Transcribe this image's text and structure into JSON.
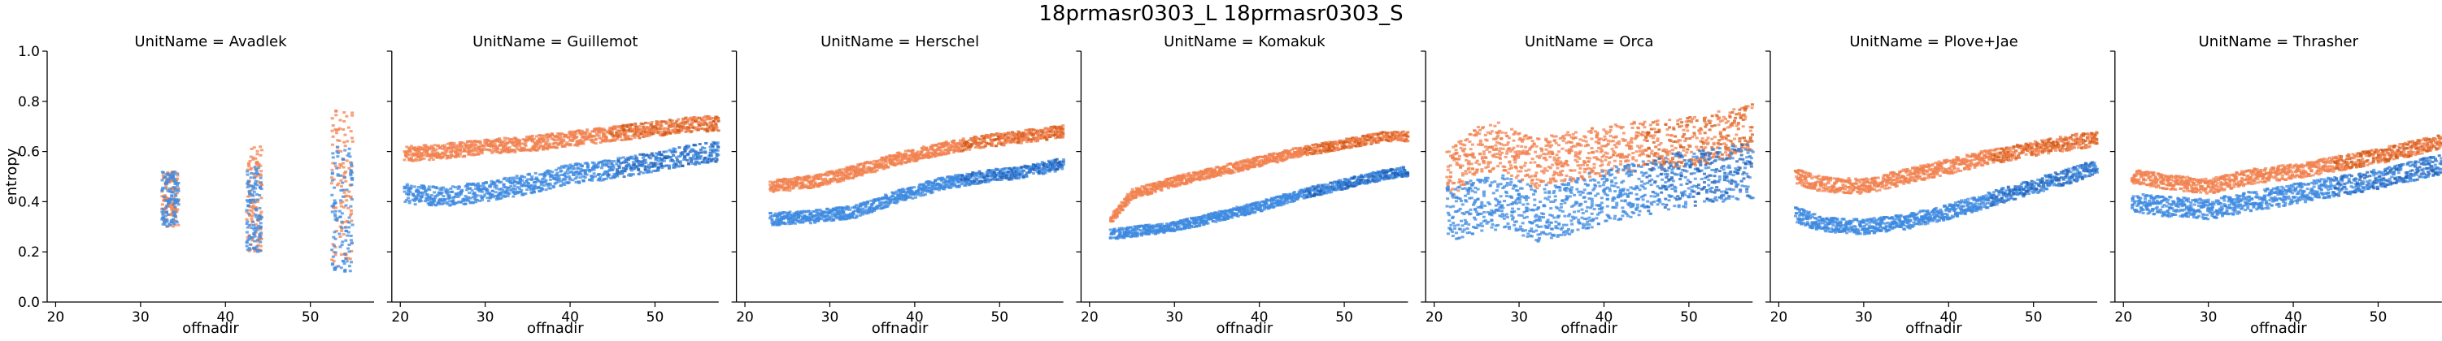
{
  "suptitle": "18prmasr0303_L 18prmasr0303_S",
  "colors": {
    "L": "#f2824f",
    "S": "#3d8ae0",
    "L_dark": "#d35a16",
    "S_dark": "#1f5fb5"
  },
  "chart_data": {
    "type": "scatter",
    "facet_label_prefix": "UnitName = ",
    "xlabel": "offnadir",
    "ylabel": "entropy",
    "xlim": [
      19,
      57.5
    ],
    "ylim": [
      0.0,
      1.0
    ],
    "xticks": [
      20,
      30,
      40,
      50
    ],
    "yticks": [
      0.0,
      0.2,
      0.4,
      0.6,
      0.8,
      1.0
    ],
    "series_order": [
      "L",
      "S"
    ],
    "facets": [
      {
        "name": "Avadlek",
        "clusters": [
          {
            "x": [
              32.5,
              34.5
            ],
            "L": [
              0.3,
              0.52
            ],
            "S": [
              0.3,
              0.52
            ]
          },
          {
            "x": [
              42.5,
              44.3
            ],
            "L": [
              0.2,
              0.62
            ],
            "S": [
              0.2,
              0.55
            ]
          },
          {
            "x": [
              52.5,
              55.0
            ],
            "L": [
              0.14,
              0.78
            ],
            "S": [
              0.12,
              0.62
            ]
          }
        ]
      },
      {
        "name": "Guillemot",
        "L": [
          [
            20.5,
            0.59
          ],
          [
            25,
            0.6
          ],
          [
            30,
            0.62
          ],
          [
            35,
            0.63
          ],
          [
            40,
            0.65
          ],
          [
            45,
            0.67
          ],
          [
            50,
            0.69
          ],
          [
            55,
            0.71
          ],
          [
            57.5,
            0.71
          ]
        ],
        "S": [
          [
            20.5,
            0.43
          ],
          [
            25,
            0.42
          ],
          [
            30,
            0.44
          ],
          [
            35,
            0.47
          ],
          [
            40,
            0.51
          ],
          [
            45,
            0.53
          ],
          [
            50,
            0.56
          ],
          [
            55,
            0.59
          ],
          [
            57.5,
            0.6
          ]
        ],
        "spread_L": 0.03,
        "spread_S": 0.04
      },
      {
        "name": "Herschel",
        "L": [
          [
            23,
            0.46
          ],
          [
            28,
            0.48
          ],
          [
            33,
            0.52
          ],
          [
            38,
            0.57
          ],
          [
            43,
            0.61
          ],
          [
            48,
            0.64
          ],
          [
            53,
            0.66
          ],
          [
            57.5,
            0.68
          ]
        ],
        "S": [
          [
            23,
            0.33
          ],
          [
            28,
            0.34
          ],
          [
            33,
            0.36
          ],
          [
            38,
            0.42
          ],
          [
            43,
            0.47
          ],
          [
            48,
            0.5
          ],
          [
            53,
            0.52
          ],
          [
            57.5,
            0.55
          ]
        ],
        "spread_L": 0.025,
        "spread_S": 0.025
      },
      {
        "name": "Komakuk",
        "L": [
          [
            22.5,
            0.33
          ],
          [
            25,
            0.43
          ],
          [
            30,
            0.48
          ],
          [
            35,
            0.52
          ],
          [
            40,
            0.56
          ],
          [
            45,
            0.6
          ],
          [
            50,
            0.63
          ],
          [
            55,
            0.66
          ],
          [
            57.5,
            0.66
          ]
        ],
        "S": [
          [
            22.5,
            0.27
          ],
          [
            25,
            0.28
          ],
          [
            30,
            0.3
          ],
          [
            35,
            0.34
          ],
          [
            40,
            0.38
          ],
          [
            45,
            0.43
          ],
          [
            50,
            0.47
          ],
          [
            55,
            0.51
          ],
          [
            57.5,
            0.52
          ]
        ],
        "spread_L": 0.02,
        "spread_S": 0.02
      },
      {
        "name": "Orca",
        "L": [
          [
            21.5,
            0.5
          ],
          [
            25,
            0.6
          ],
          [
            28,
            0.62
          ],
          [
            32,
            0.55
          ],
          [
            36,
            0.58
          ],
          [
            40,
            0.6
          ],
          [
            44,
            0.62
          ],
          [
            48,
            0.63
          ],
          [
            52,
            0.65
          ],
          [
            56,
            0.68
          ],
          [
            57.5,
            0.7
          ]
        ],
        "S": [
          [
            21.5,
            0.35
          ],
          [
            25,
            0.38
          ],
          [
            28,
            0.4
          ],
          [
            32,
            0.35
          ],
          [
            36,
            0.38
          ],
          [
            40,
            0.42
          ],
          [
            44,
            0.45
          ],
          [
            48,
            0.48
          ],
          [
            52,
            0.5
          ],
          [
            56,
            0.52
          ],
          [
            57.5,
            0.52
          ]
        ],
        "spread_L": 0.1,
        "spread_S": 0.11
      },
      {
        "name": "Plove+Jae",
        "L": [
          [
            22,
            0.5
          ],
          [
            25,
            0.47
          ],
          [
            30,
            0.46
          ],
          [
            35,
            0.5
          ],
          [
            40,
            0.54
          ],
          [
            45,
            0.58
          ],
          [
            50,
            0.61
          ],
          [
            55,
            0.64
          ],
          [
            57.5,
            0.65
          ]
        ],
        "S": [
          [
            22,
            0.35
          ],
          [
            25,
            0.31
          ],
          [
            30,
            0.3
          ],
          [
            35,
            0.32
          ],
          [
            40,
            0.36
          ],
          [
            45,
            0.41
          ],
          [
            50,
            0.46
          ],
          [
            55,
            0.51
          ],
          [
            57.5,
            0.54
          ]
        ],
        "spread_L": 0.03,
        "spread_S": 0.03
      },
      {
        "name": "Thrasher",
        "L": [
          [
            21,
            0.5
          ],
          [
            25,
            0.48
          ],
          [
            30,
            0.46
          ],
          [
            35,
            0.5
          ],
          [
            40,
            0.52
          ],
          [
            45,
            0.55
          ],
          [
            50,
            0.58
          ],
          [
            55,
            0.62
          ],
          [
            57.5,
            0.64
          ]
        ],
        "S": [
          [
            21,
            0.4
          ],
          [
            25,
            0.38
          ],
          [
            30,
            0.37
          ],
          [
            35,
            0.4
          ],
          [
            40,
            0.43
          ],
          [
            45,
            0.46
          ],
          [
            50,
            0.49
          ],
          [
            55,
            0.53
          ],
          [
            57.5,
            0.55
          ]
        ],
        "spread_L": 0.03,
        "spread_S": 0.04
      }
    ]
  }
}
